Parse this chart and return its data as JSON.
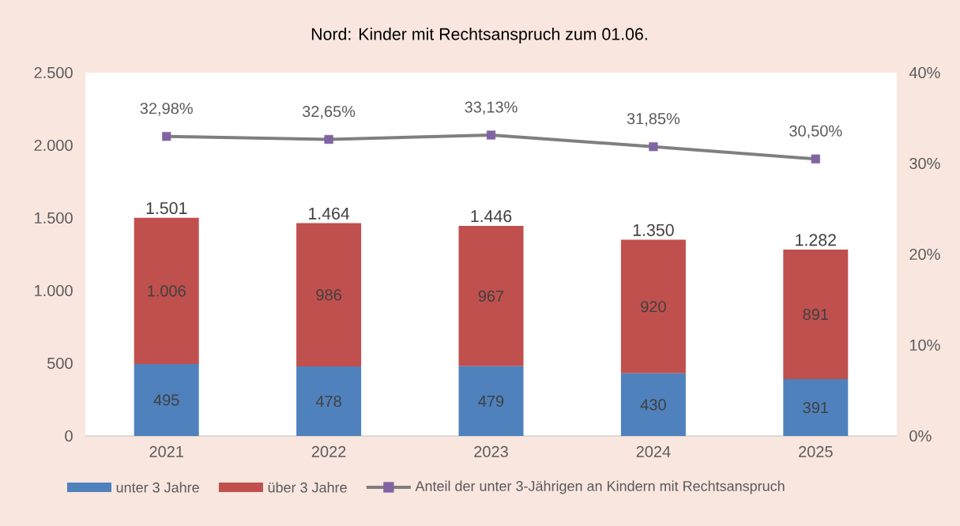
{
  "chart_data": {
    "type": "bar",
    "title": "Nord: Kinder mit Rechtsanspruch zum 01.06.",
    "categories": [
      "2021",
      "2022",
      "2023",
      "2024",
      "2025"
    ],
    "stacked": true,
    "series": [
      {
        "name": "unter 3 Jahre",
        "color": "#4f81bd",
        "values": [
          495,
          478,
          479,
          430,
          391
        ],
        "value_labels": [
          "495",
          "478",
          "479",
          "430",
          "391"
        ]
      },
      {
        "name": "über 3 Jahre",
        "color": "#c0504d",
        "values": [
          1006,
          986,
          967,
          920,
          891
        ],
        "value_labels": [
          "1.006",
          "986",
          "967",
          "920",
          "891"
        ]
      },
      {
        "name": "Anteil der unter 3-Jährigen an Kindern mit Rechtsanspruch",
        "type": "line",
        "axis": "y2",
        "color": "#7f7f7f",
        "marker": "square",
        "colors": [
          "#8064a2",
          "#8064a2",
          "#8064a2",
          "#8064a2",
          "#8064a2"
        ],
        "values": [
          32.98,
          32.65,
          33.13,
          31.85,
          30.5
        ],
        "value_labels": [
          "32,98%",
          "32,65%",
          "33,13%",
          "31,85%",
          "30,50%"
        ]
      }
    ],
    "totals": [
      "1.501",
      "1.464",
      "1.446",
      "1.350",
      "1.282"
    ],
    "ylim": [
      0,
      2500
    ],
    "yticks": [
      {
        "value": 0,
        "label": "0"
      },
      {
        "value": 500,
        "label": "500"
      },
      {
        "value": 1000,
        "label": "1.000"
      },
      {
        "value": 1500,
        "label": "1.500"
      },
      {
        "value": 2000,
        "label": "2.000"
      },
      {
        "value": 2500,
        "label": "2.500"
      }
    ],
    "y2lim": [
      0,
      40
    ],
    "y2ticks": [
      {
        "value": 0,
        "label": "0%"
      },
      {
        "value": 10,
        "label": "10%"
      },
      {
        "value": 20,
        "label": "20%"
      },
      {
        "value": 30,
        "label": "30%"
      },
      {
        "value": 40,
        "label": "40%"
      }
    ],
    "legend": "bottom"
  }
}
